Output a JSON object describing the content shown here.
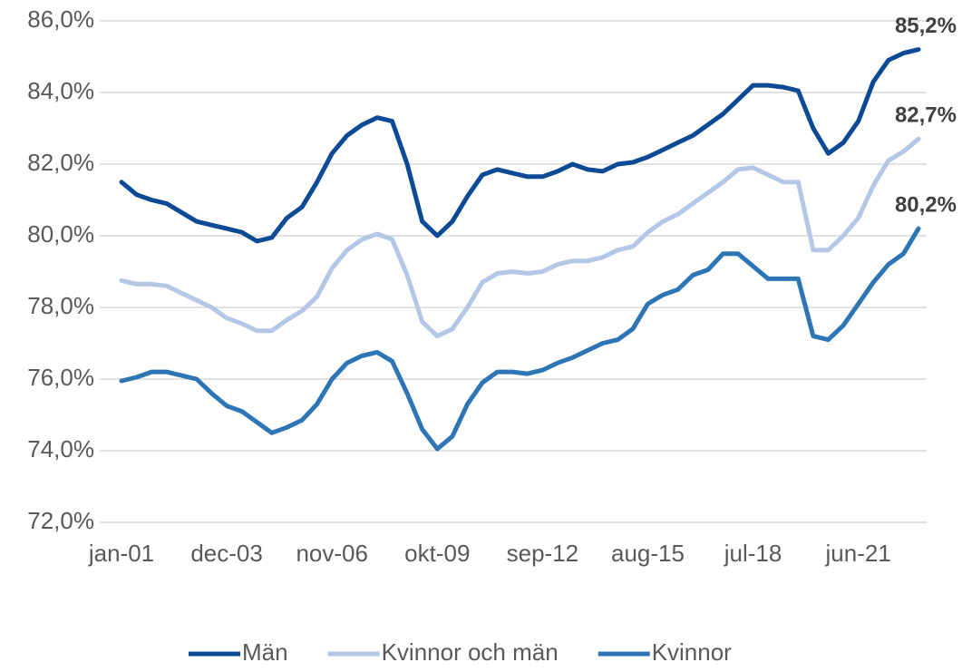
{
  "chart_data": {
    "type": "line",
    "categories": [
      "jan-01",
      null,
      null,
      null,
      null,
      null,
      null,
      "dec-03",
      null,
      null,
      null,
      null,
      null,
      null,
      "nov-06",
      null,
      null,
      null,
      null,
      null,
      null,
      "okt-09",
      null,
      null,
      null,
      null,
      null,
      null,
      "sep-12",
      null,
      null,
      null,
      null,
      null,
      null,
      "aug-15",
      null,
      null,
      null,
      null,
      null,
      null,
      "jul-18",
      null,
      null,
      null,
      null,
      null,
      null,
      "jun-21",
      null,
      null,
      null,
      null
    ],
    "series": [
      {
        "name": "Män",
        "color": "#0d4a96",
        "end_label": "85,2%",
        "values": [
          81.5,
          81.15,
          81.0,
          80.9,
          80.65,
          80.4,
          80.3,
          80.2,
          80.1,
          79.85,
          79.95,
          80.5,
          80.8,
          81.5,
          82.3,
          82.8,
          83.1,
          83.3,
          83.2,
          82.0,
          80.4,
          80.0,
          80.4,
          81.1,
          81.7,
          81.85,
          81.75,
          81.65,
          81.65,
          81.8,
          82.0,
          81.85,
          81.8,
          82.0,
          82.05,
          82.2,
          82.4,
          82.6,
          82.8,
          83.1,
          83.4,
          83.8,
          84.2,
          84.2,
          84.15,
          84.05,
          83.0,
          82.3,
          82.6,
          83.2,
          84.3,
          84.9,
          85.1,
          85.2
        ]
      },
      {
        "name": "Kvinnor och män",
        "color": "#b4c7e7",
        "end_label": "82,7%",
        "values": [
          78.75,
          78.65,
          78.65,
          78.6,
          78.4,
          78.2,
          78.0,
          77.7,
          77.55,
          77.35,
          77.35,
          77.65,
          77.9,
          78.3,
          79.1,
          79.6,
          79.9,
          80.05,
          79.9,
          78.9,
          77.6,
          77.2,
          77.4,
          78.0,
          78.7,
          78.95,
          79.0,
          78.95,
          79.0,
          79.2,
          79.3,
          79.3,
          79.4,
          79.6,
          79.7,
          80.1,
          80.4,
          80.6,
          80.9,
          81.2,
          81.5,
          81.85,
          81.9,
          81.7,
          81.5,
          81.5,
          79.6,
          79.6,
          80.0,
          80.5,
          81.4,
          82.1,
          82.35,
          82.7
        ]
      },
      {
        "name": "Kvinnor",
        "color": "#2e75b6",
        "end_label": "80,2%",
        "values": [
          75.95,
          76.05,
          76.2,
          76.2,
          76.1,
          76.0,
          75.6,
          75.25,
          75.1,
          74.8,
          74.5,
          74.65,
          74.85,
          75.3,
          76.0,
          76.45,
          76.65,
          76.75,
          76.5,
          75.6,
          74.6,
          74.05,
          74.4,
          75.3,
          75.9,
          76.2,
          76.2,
          76.15,
          76.25,
          76.45,
          76.6,
          76.8,
          77.0,
          77.1,
          77.4,
          78.1,
          78.35,
          78.5,
          78.9,
          79.05,
          79.5,
          79.5,
          79.15,
          78.8,
          78.8,
          78.8,
          77.2,
          77.1,
          77.5,
          78.1,
          78.7,
          79.2,
          79.5,
          80.2
        ]
      }
    ],
    "ylim": [
      72,
      86
    ],
    "yticks": [
      {
        "value": 72,
        "label": "72,0%"
      },
      {
        "value": 74,
        "label": "74,0%"
      },
      {
        "value": 76,
        "label": "76,0%"
      },
      {
        "value": 78,
        "label": "78,0%"
      },
      {
        "value": 80,
        "label": "80,0%"
      },
      {
        "value": 82,
        "label": "82,0%"
      },
      {
        "value": 84,
        "label": "84,0%"
      },
      {
        "value": 86,
        "label": "86,0%"
      }
    ],
    "grid": true,
    "legend": "bottom"
  }
}
